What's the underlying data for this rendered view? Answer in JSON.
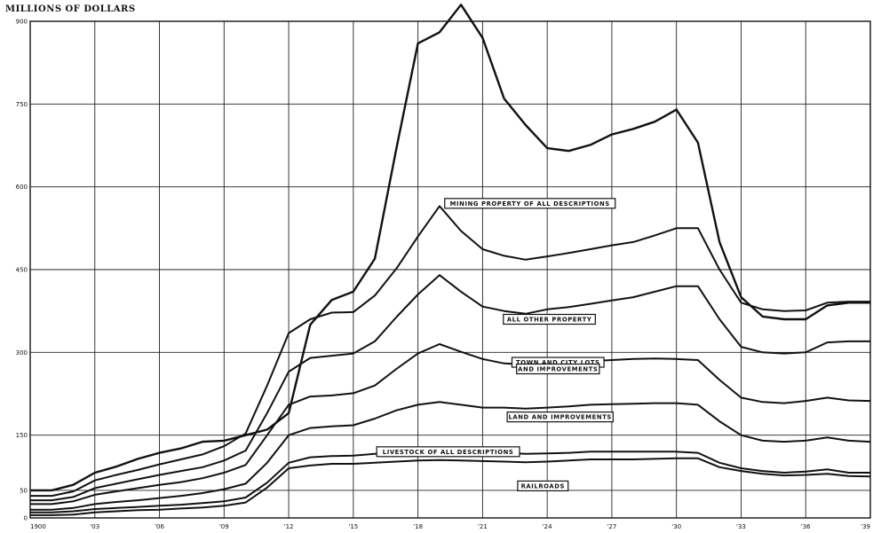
{
  "chart_data": {
    "type": "area",
    "title": "",
    "ylabel": "MILLIONS OF DOLLARS",
    "xlabel": "",
    "xlim": [
      1900,
      1939
    ],
    "ylim": [
      0,
      900
    ],
    "grid": true,
    "x_ticks": [
      {
        "value": 1900,
        "label": "1900"
      },
      {
        "value": 1903,
        "label": "'03"
      },
      {
        "value": 1906,
        "label": "'06"
      },
      {
        "value": 1909,
        "label": "'09"
      },
      {
        "value": 1912,
        "label": "'12"
      },
      {
        "value": 1915,
        "label": "'15"
      },
      {
        "value": 1918,
        "label": "'18"
      },
      {
        "value": 1921,
        "label": "'21"
      },
      {
        "value": 1924,
        "label": "'24"
      },
      {
        "value": 1927,
        "label": "'27"
      },
      {
        "value": 1930,
        "label": "'30"
      },
      {
        "value": 1933,
        "label": "'33"
      },
      {
        "value": 1936,
        "label": "'36"
      },
      {
        "value": 1939,
        "label": "'39"
      }
    ],
    "y_ticks": [
      {
        "value": 0,
        "label": "0"
      },
      {
        "value": 50,
        "label": "50"
      },
      {
        "value": 150,
        "label": "150"
      },
      {
        "value": 300,
        "label": "300"
      },
      {
        "value": 450,
        "label": "450"
      },
      {
        "value": 600,
        "label": "600"
      },
      {
        "value": 750,
        "label": "750"
      },
      {
        "value": 900,
        "label": "900"
      }
    ],
    "x": [
      1900,
      1901,
      1902,
      1903,
      1904,
      1905,
      1906,
      1907,
      1908,
      1909,
      1910,
      1911,
      1912,
      1913,
      1914,
      1915,
      1916,
      1917,
      1918,
      1919,
      1920,
      1921,
      1922,
      1923,
      1924,
      1925,
      1926,
      1927,
      1928,
      1929,
      1930,
      1931,
      1932,
      1933,
      1934,
      1935,
      1936,
      1937,
      1938,
      1939
    ],
    "series": [
      {
        "name": "RAILROADS",
        "values": [
          5,
          5,
          6,
          10,
          12,
          14,
          15,
          17,
          19,
          22,
          28,
          55,
          90,
          95,
          98,
          98,
          100,
          102,
          104,
          105,
          104,
          103,
          102,
          101,
          102,
          104,
          106,
          106,
          106,
          107,
          108,
          108,
          92,
          85,
          80,
          77,
          78,
          80,
          76,
          75
        ]
      },
      {
        "name": "LIVESTOCK OF ALL DESCRIPTIONS",
        "values": [
          10,
          10,
          12,
          16,
          18,
          20,
          22,
          24,
          27,
          30,
          37,
          64,
          100,
          110,
          112,
          113,
          116,
          120,
          123,
          125,
          124,
          120,
          118,
          116,
          117,
          118,
          120,
          120,
          120,
          120,
          120,
          118,
          100,
          90,
          85,
          82,
          84,
          88,
          82,
          82
        ]
      },
      {
        "name": "LAND AND IMPROVEMENTS",
        "values": [
          15,
          15,
          18,
          25,
          29,
          32,
          36,
          40,
          45,
          52,
          62,
          100,
          150,
          163,
          166,
          168,
          180,
          195,
          205,
          210,
          205,
          200,
          200,
          198,
          200,
          202,
          205,
          206,
          207,
          208,
          208,
          205,
          175,
          150,
          140,
          138,
          140,
          146,
          140,
          138
        ]
      },
      {
        "name": "TOWN AND CITY LOTS AND IMPROVEMENTS",
        "values": [
          25,
          25,
          30,
          42,
          48,
          54,
          60,
          65,
          72,
          82,
          96,
          150,
          205,
          220,
          222,
          226,
          240,
          270,
          298,
          315,
          301,
          288,
          280,
          278,
          280,
          282,
          284,
          286,
          288,
          289,
          288,
          286,
          250,
          218,
          210,
          208,
          212,
          218,
          213,
          212
        ]
      },
      {
        "name": "ALL OTHER PROPERTY",
        "values": [
          32,
          32,
          38,
          54,
          62,
          70,
          78,
          85,
          92,
          104,
          122,
          190,
          265,
          290,
          294,
          298,
          320,
          364,
          405,
          440,
          410,
          383,
          375,
          370,
          378,
          382,
          388,
          394,
          400,
          410,
          420,
          420,
          360,
          310,
          300,
          298,
          300,
          318,
          320,
          320
        ]
      },
      {
        "name": "MINING PROPERTY OF ALL DESCRIPTIONS",
        "values": [
          40,
          40,
          48,
          68,
          78,
          87,
          97,
          106,
          115,
          130,
          153,
          240,
          335,
          360,
          372,
          373,
          403,
          452,
          510,
          565,
          520,
          487,
          475,
          468,
          474,
          480,
          487,
          494,
          500,
          512,
          525,
          525,
          450,
          390,
          378,
          375,
          376,
          390,
          392,
          392
        ]
      },
      {
        "name": "",
        "values": [
          50,
          50,
          60,
          82,
          93,
          107,
          118,
          126,
          138,
          140,
          150,
          160,
          190,
          350,
          395,
          410,
          470,
          670,
          860,
          880,
          930,
          870,
          760,
          712,
          670,
          665,
          676,
          695,
          705,
          718,
          740,
          680,
          500,
          400,
          365,
          360,
          360,
          385,
          390,
          390
        ]
      }
    ],
    "annotations": [
      {
        "text": "MINING PROPERTY OF ALL DESCRIPTIONS",
        "x": 1923.2,
        "y": 570
      },
      {
        "text": "ALL OTHER PROPERTY",
        "x": 1924.1,
        "y": 360
      },
      {
        "text": "TOWN AND CITY LOTS",
        "x": 1924.5,
        "y": 282
      },
      {
        "text": "AND IMPROVEMENTS",
        "x": 1924.5,
        "y": 270
      },
      {
        "text": "LAND AND IMPROVEMENTS",
        "x": 1924.6,
        "y": 183
      },
      {
        "text": "LIVESTOCK OF ALL DESCRIPTIONS",
        "x": 1919.4,
        "y": 120
      },
      {
        "text": "RAILROADS",
        "x": 1923.8,
        "y": 58
      }
    ]
  }
}
